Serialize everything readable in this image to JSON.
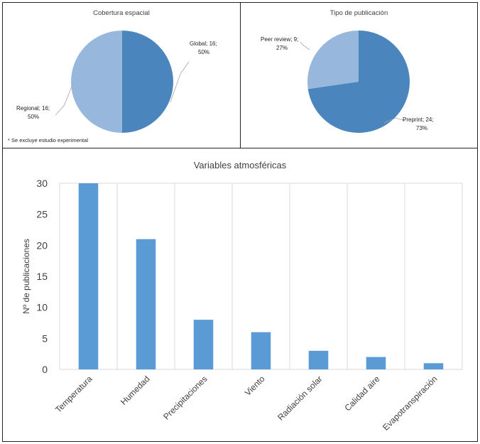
{
  "chart_data": [
    {
      "type": "pie",
      "title": "Cobertura espacial",
      "slices": [
        {
          "label": "Global",
          "value": 16,
          "percent": "50%",
          "color": "#4a86bd"
        },
        {
          "label": "Regional",
          "value": 16,
          "percent": "50%",
          "color": "#97b8dc"
        }
      ],
      "data_labels": [
        "Global; 16;",
        "50%",
        "Regional; 16;",
        "50%"
      ],
      "footnote": "* Se excluye estudio experimental"
    },
    {
      "type": "pie",
      "title": "Tipo de publicación",
      "slices": [
        {
          "label": "Preprint",
          "value": 24,
          "percent": "73%",
          "color": "#4a86bd"
        },
        {
          "label": "Peer review",
          "value": 9,
          "percent": "27%",
          "color": "#97b8dc"
        }
      ],
      "data_labels": [
        "Preprint; 24;",
        "73%",
        "Peer review; 9;",
        "27%"
      ]
    },
    {
      "type": "bar",
      "title": "Variables atmosféricas",
      "xlabel": "",
      "ylabel": "Nº de publicaciones",
      "categories": [
        "Temperatura",
        "Humedad",
        "Precipitaciones",
        "Viento",
        "Radiación solar",
        "Calidad aire",
        "Evapotranspiración"
      ],
      "values": [
        30,
        21,
        8,
        6,
        3,
        2,
        1
      ],
      "ylim": [
        0,
        30
      ],
      "yticks": [
        "0",
        "5",
        "10",
        "15",
        "20",
        "25",
        "30"
      ],
      "grid": "vertical",
      "bar_color": "#5b9bd5"
    }
  ]
}
